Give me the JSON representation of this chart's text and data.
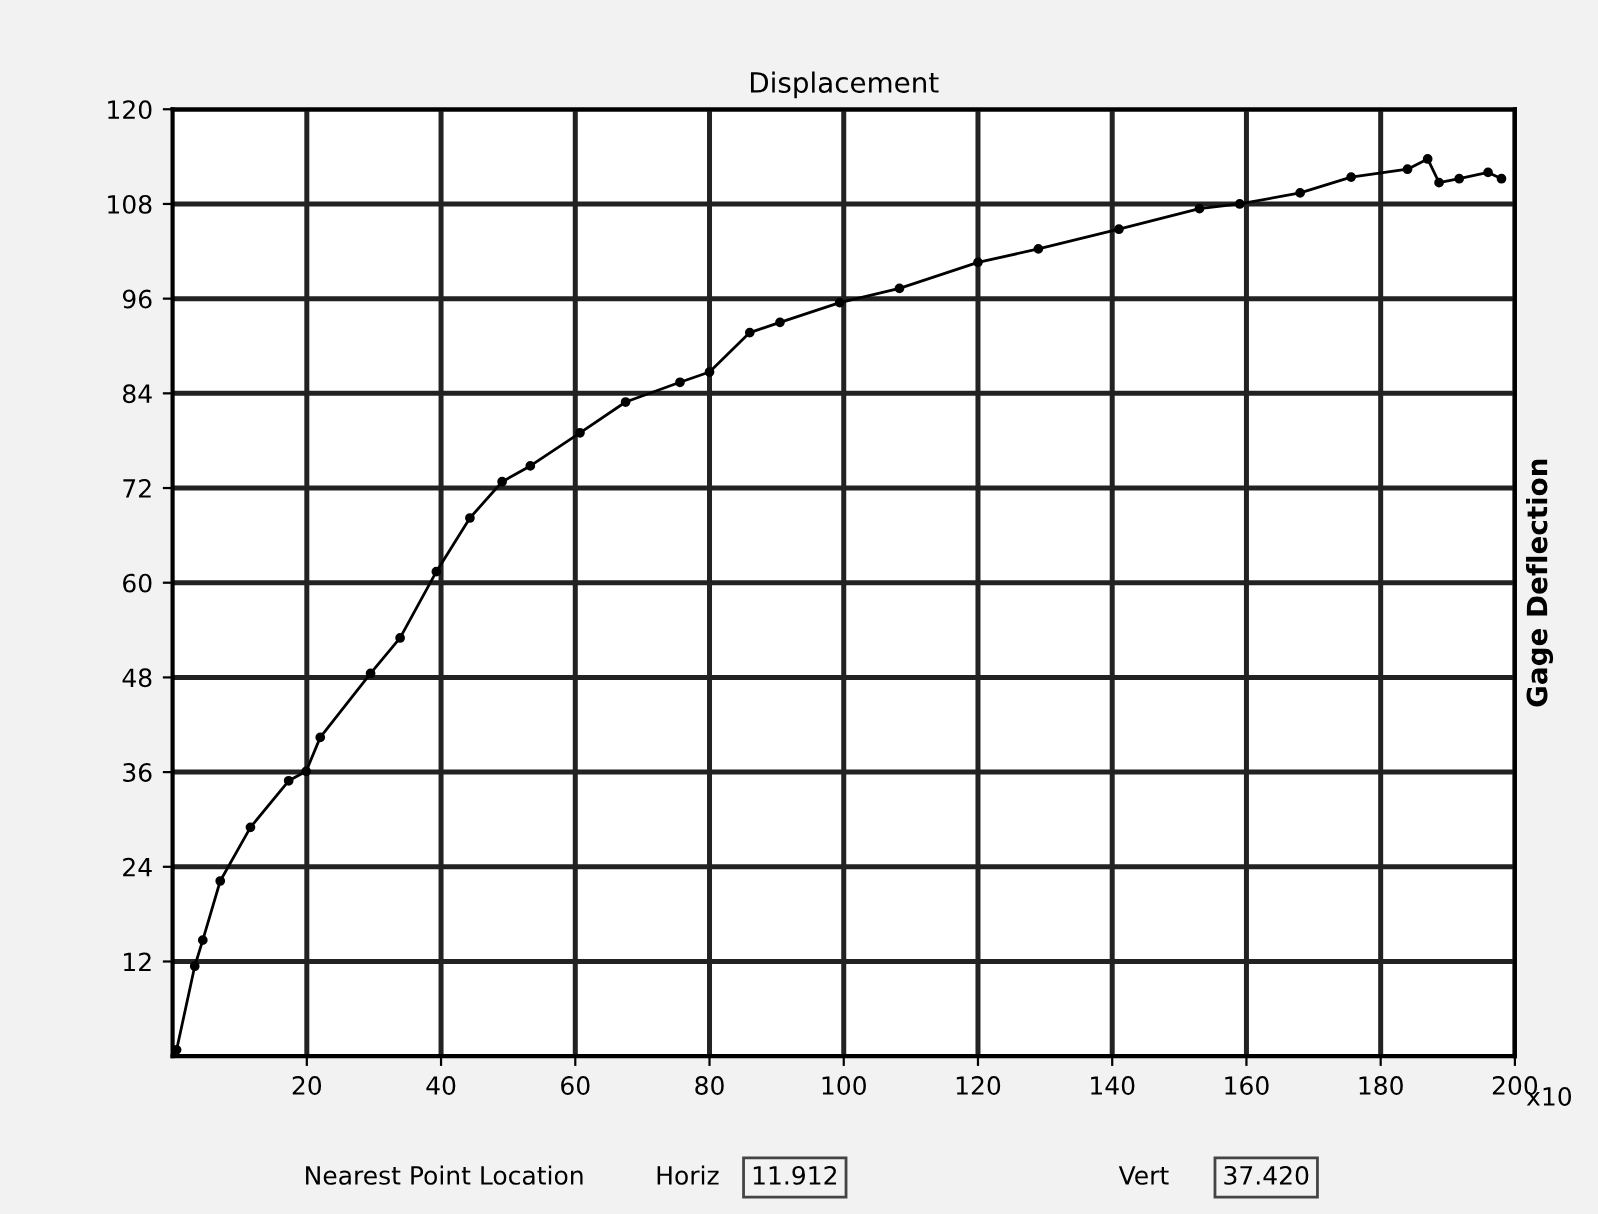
{
  "chart_data": {
    "type": "line",
    "title": "Displacement",
    "ylabel": "Gage Deflection",
    "annotations": [
      "x10",
      "Nearest Point Location",
      "Horiz",
      "11.912",
      "Vert",
      "37.420"
    ],
    "x": [
      0.6,
      3.3,
      4.5,
      7.1,
      11.6,
      17.3,
      19.9,
      22,
      29.5,
      33.9,
      39.3,
      44.3,
      49.1,
      53.3,
      60.7,
      67.5,
      75.6,
      80,
      86,
      90.5,
      99.4,
      108.3,
      120,
      129,
      141,
      153,
      159,
      168,
      175.6,
      184,
      187,
      188.7,
      191.7,
      196,
      198
    ],
    "series": [
      {
        "color": "#000000",
        "values": [
          0.8,
          11.4,
          14.7,
          22.2,
          29,
          34.9,
          36.1,
          40.4,
          48.5,
          53,
          61.4,
          68.2,
          72.8,
          74.8,
          79,
          82.9,
          85.4,
          86.7,
          91.7,
          93,
          95.5,
          97.3,
          100.6,
          102.3,
          104.8,
          107.4,
          108,
          109.4,
          111.4,
          112.4,
          113.7,
          110.7,
          111.2,
          112,
          111.2
        ]
      }
    ],
    "xlim": [
      0,
      200
    ],
    "ylim": [
      0,
      120
    ],
    "xticks": [
      20,
      40,
      60,
      80,
      100,
      120,
      140,
      160,
      180,
      200
    ],
    "yticks": [
      12,
      24,
      36,
      48,
      60,
      72,
      84,
      96,
      108,
      120
    ],
    "grid": true,
    "marker": "circle",
    "line_style": "solid"
  }
}
